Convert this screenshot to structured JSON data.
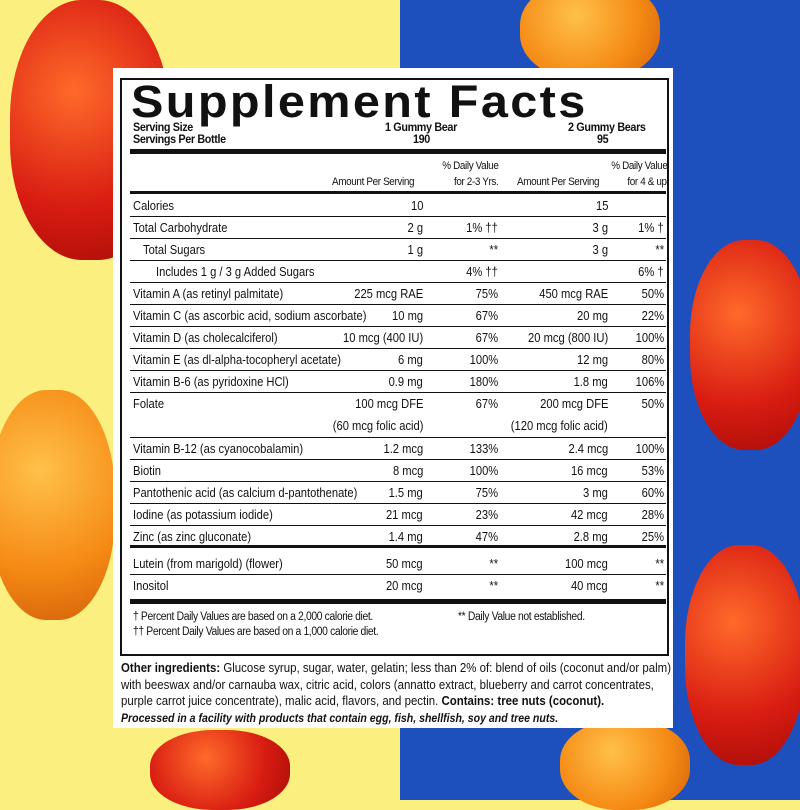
{
  "title": "Supplement Facts",
  "serving": {
    "size_label": "Serving Size",
    "size1": "1 Gummy Bear",
    "size2": "2 Gummy Bears",
    "per_label": "Servings Per Bottle",
    "per1": "190",
    "per2": "95"
  },
  "headers": {
    "amount1": "Amount Per Serving",
    "dv1_a": "% Daily Value",
    "dv1_b": "for 2-3 Yrs.",
    "amount2": "Amount Per Serving",
    "dv2_a": "% Daily Value",
    "dv2_b": "for 4 & up"
  },
  "rows": [
    {
      "name": "Calories",
      "a1": "10",
      "d1": "",
      "a2": "15",
      "d2": ""
    },
    {
      "name": "Total Carbohydrate",
      "a1": "2 g",
      "d1": "1% ††",
      "a2": "3 g",
      "d2": "1% †"
    },
    {
      "name": "Total Sugars",
      "a1": "1 g",
      "d1": "**",
      "a2": "3 g",
      "d2": "**"
    },
    {
      "name": "Includes 1 g / 3 g Added Sugars",
      "a1": "",
      "d1": "4% ††",
      "a2": "",
      "d2": "6% †"
    },
    {
      "name": "Vitamin A (as retinyl palmitate)",
      "a1": "225 mcg RAE",
      "d1": "75%",
      "a2": "450 mcg RAE",
      "d2": "50%"
    },
    {
      "name": "Vitamin C (as ascorbic acid, sodium ascorbate)",
      "a1": "10 mg",
      "d1": "67%",
      "a2": "20 mg",
      "d2": "22%"
    },
    {
      "name": "Vitamin D (as cholecalciferol)",
      "a1": "10 mcg (400 IU)",
      "d1": "67%",
      "a2": "20 mcg (800 IU)",
      "d2": "100%"
    },
    {
      "name": "Vitamin E (as dl-alpha-tocopheryl acetate)",
      "a1": "6 mg",
      "d1": "100%",
      "a2": "12 mg",
      "d2": "80%"
    },
    {
      "name": "Vitamin B-6 (as pyridoxine HCl)",
      "a1": "0.9 mg",
      "d1": "180%",
      "a2": "1.8 mg",
      "d2": "106%"
    },
    {
      "name": "Folate",
      "a1": "100 mcg DFE",
      "d1": "67%",
      "a2": "200 mcg DFE",
      "d2": "50%",
      "sub1": "(60 mcg folic acid)",
      "sub2": "(120 mcg folic acid)"
    },
    {
      "name": "Vitamin B-12 (as cyanocobalamin)",
      "a1": "1.2 mcg",
      "d1": "133%",
      "a2": "2.4 mcg",
      "d2": "100%"
    },
    {
      "name": "Biotin",
      "a1": "8 mcg",
      "d1": "100%",
      "a2": "16 mcg",
      "d2": "53%"
    },
    {
      "name": "Pantothenic acid (as calcium d-pantothenate)",
      "a1": "1.5 mg",
      "d1": "75%",
      "a2": "3 mg",
      "d2": "60%"
    },
    {
      "name": "Iodine (as potassium iodide)",
      "a1": "21 mcg",
      "d1": "23%",
      "a2": "42 mcg",
      "d2": "28%"
    },
    {
      "name": "Zinc (as zinc gluconate)",
      "a1": "1.4 mg",
      "d1": "47%",
      "a2": "2.8 mg",
      "d2": "25%"
    },
    {
      "name": "Lutein (from marigold) (flower)",
      "a1": "50 mcg",
      "d1": "**",
      "a2": "100 mcg",
      "d2": "**"
    },
    {
      "name": "Inositol",
      "a1": "20 mcg",
      "d1": "**",
      "a2": "40 mcg",
      "d2": "**"
    }
  ],
  "footnotes": {
    "dagger": "† Percent Daily Values are based on a 2,000 calorie diet.",
    "ddagger": "†† Percent Daily Values are based on a 1,000 calorie diet.",
    "stars": "** Daily Value not established."
  },
  "ingredients": {
    "label": "Other ingredients:",
    "text": " Glucose syrup, sugar, water, gelatin; less than 2% of: blend of oils (coconut and/or palm) with beeswax and/or carnauba wax, citric acid, colors (annatto extract, blueberry and carrot concentrates, purple carrot juice concentrate), malic acid, flavors, and pectin. ",
    "contains_label": "Contains:",
    "contains": " tree nuts (coconut).",
    "processed": "Processed in a facility with products that contain egg, fish, shellfish, soy and tree nuts."
  },
  "colors": {
    "yellow": "#fbf07f",
    "blue": "#1d4fbd",
    "bear_red": "#d81c12",
    "bear_orange": "#f58a14"
  }
}
